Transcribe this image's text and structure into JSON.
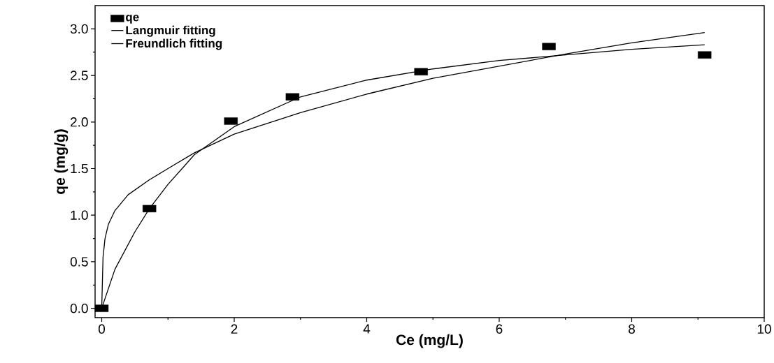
{
  "chart_data": {
    "type": "scatter",
    "xlabel": "Ce (mg/L)",
    "ylabel": "qe (mg/g)",
    "xlim": [
      -0.1,
      10
    ],
    "ylim": [
      -0.1,
      3.25
    ],
    "xticks": [
      0,
      2,
      4,
      6,
      8,
      10
    ],
    "yticks": [
      {
        "value": 0,
        "label": "0.0"
      },
      0.5,
      {
        "value": 1,
        "label": "1.0"
      },
      1.5,
      {
        "value": 2,
        "label": "2.0"
      },
      2.5,
      {
        "value": 3,
        "label": "3.0"
      }
    ],
    "legend": "top left",
    "grid": false,
    "series": [
      {
        "name": "qe",
        "marker": "square",
        "color": "#000000",
        "x": [
          0,
          0.72,
          1.95,
          2.88,
          4.82,
          6.75,
          9.1
        ],
        "values": [
          0,
          1.07,
          2.01,
          2.27,
          2.54,
          2.81,
          2.72
        ]
      },
      {
        "name": "Langmuir fitting",
        "type": "line",
        "marker": "none",
        "line_style": "solid",
        "color": "#000000",
        "x": [
          0,
          0.2,
          0.5,
          0.72,
          1,
          1.4,
          2,
          3,
          4,
          5,
          6,
          7,
          8,
          9.1
        ],
        "values": [
          0,
          0.42,
          0.82,
          1.07,
          1.33,
          1.65,
          1.95,
          2.27,
          2.45,
          2.57,
          2.66,
          2.72,
          2.78,
          2.83
        ]
      },
      {
        "name": "Freundlich fitting",
        "type": "line",
        "marker": "none",
        "line_style": "solid",
        "color": "#000000",
        "x": [
          0,
          0.02,
          0.05,
          0.1,
          0.2,
          0.4,
          0.72,
          1,
          1.4,
          2,
          3,
          4,
          5,
          6,
          7,
          8,
          9.1
        ],
        "values": [
          0,
          0.55,
          0.75,
          0.9,
          1.05,
          1.22,
          1.38,
          1.5,
          1.67,
          1.87,
          2.1,
          2.3,
          2.47,
          2.6,
          2.73,
          2.85,
          2.96
        ]
      }
    ]
  }
}
